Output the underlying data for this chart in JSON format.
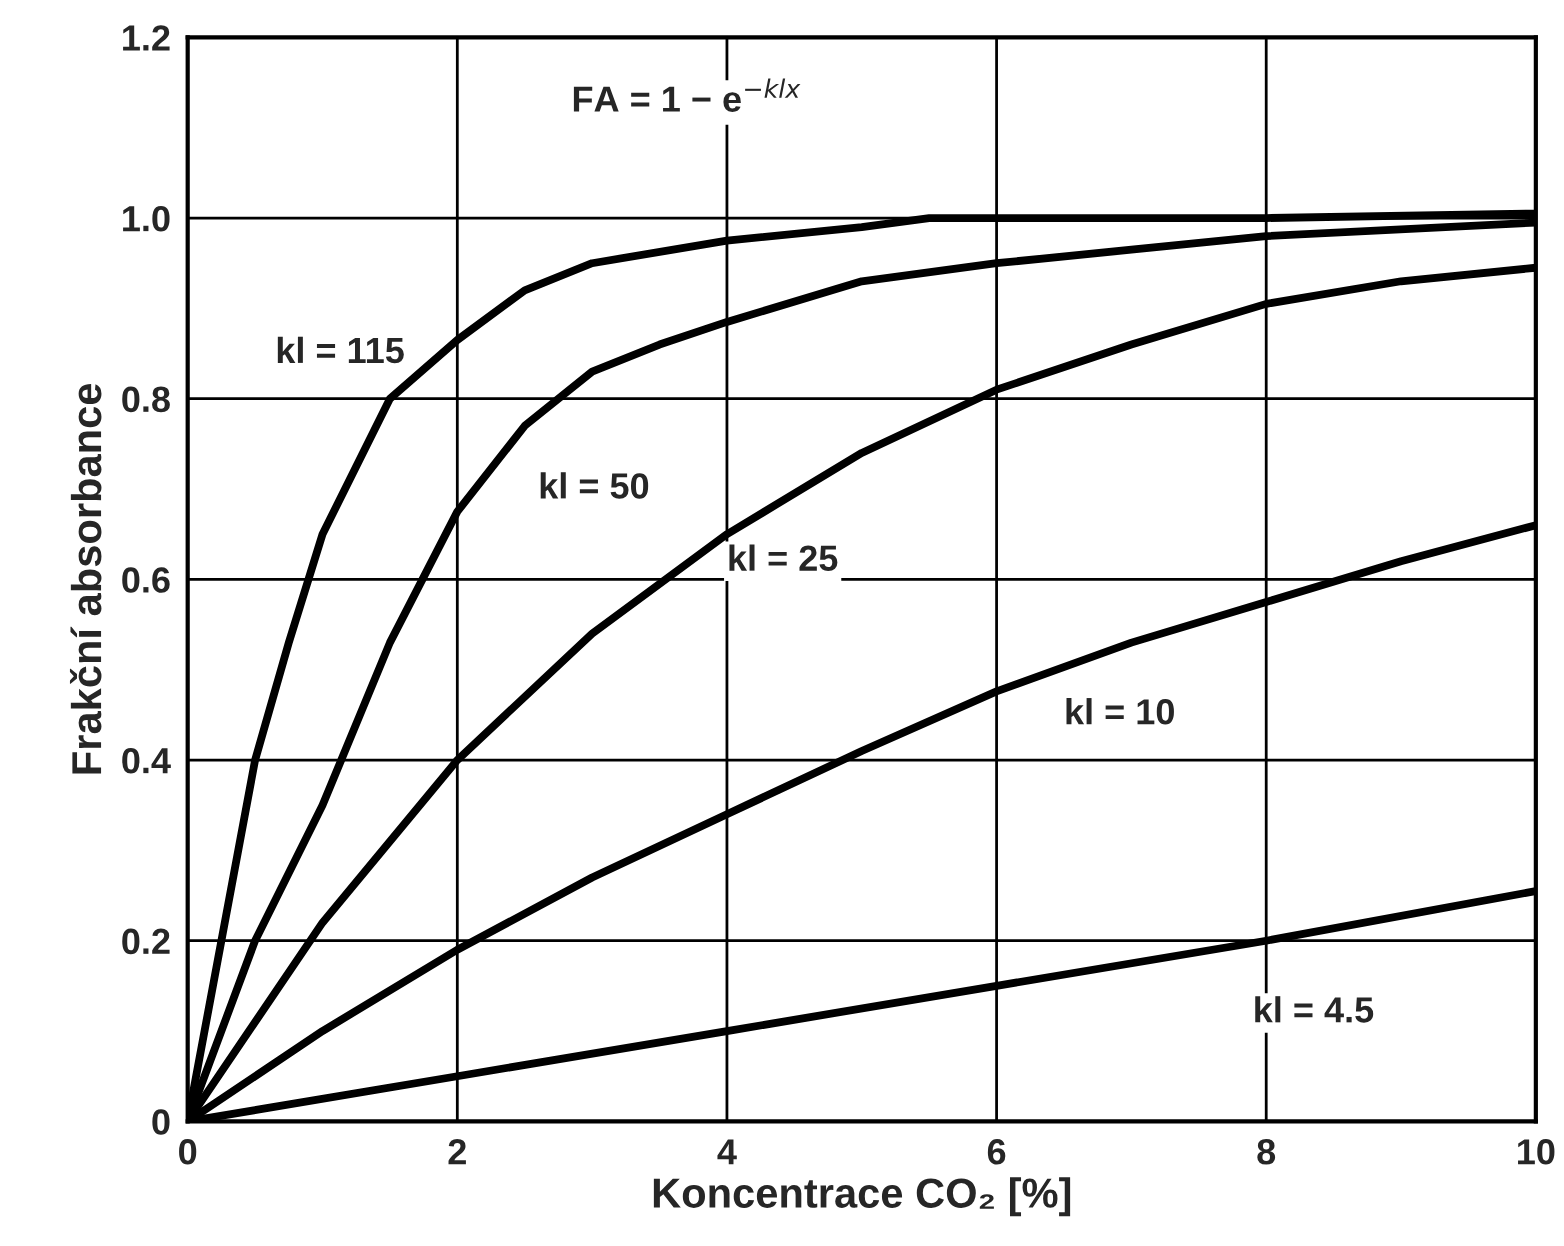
{
  "chart_data": {
    "type": "line",
    "xlabel": "Koncentrace CO₂ [%]",
    "ylabel": "Frakční absorbance",
    "xlim": [
      0,
      10
    ],
    "xticks": [
      0,
      2,
      4,
      6,
      8,
      10
    ],
    "ylim": [
      0,
      1.2
    ],
    "yticks": [
      0,
      0.2,
      0.4,
      0.6,
      0.8,
      {
        "value": 1.0,
        "label": "1.0"
      },
      1.2
    ],
    "grid": true,
    "marker": "none",
    "line_style": "solid",
    "series": [
      {
        "name": "kl = 4.5",
        "color": "#000000",
        "x": [
          0,
          2,
          4,
          6,
          8,
          10
        ],
        "values": [
          0,
          0.05,
          0.1,
          0.15,
          0.2,
          0.255
        ]
      },
      {
        "name": "kl = 10",
        "color": "#000000",
        "x": [
          0,
          1,
          2,
          3,
          4,
          5,
          6,
          7,
          8,
          9,
          10
        ],
        "values": [
          0,
          0.1,
          0.19,
          0.27,
          0.34,
          0.41,
          0.476,
          0.53,
          0.575,
          0.62,
          0.66
        ]
      },
      {
        "name": "kl = 25",
        "color": "#000000",
        "x": [
          0,
          1,
          2,
          3,
          4,
          5,
          6,
          7,
          8,
          9,
          10
        ],
        "values": [
          0,
          0.22,
          0.4,
          0.54,
          0.65,
          0.74,
          0.81,
          0.86,
          0.905,
          0.93,
          0.945
        ]
      },
      {
        "name": "kl = 50",
        "color": "#000000",
        "x": [
          0,
          0.5,
          1,
          1.5,
          2,
          2.5,
          3,
          3.5,
          4,
          5,
          6,
          7,
          8,
          10
        ],
        "values": [
          0,
          0.2,
          0.35,
          0.53,
          0.675,
          0.77,
          0.83,
          0.86,
          0.885,
          0.93,
          0.95,
          0.965,
          0.98,
          0.995
        ]
      },
      {
        "name": "kl = 115",
        "color": "#000000",
        "x": [
          0,
          0.25,
          0.5,
          0.75,
          1,
          1.5,
          2,
          2.5,
          3,
          4,
          5,
          5.5,
          6,
          8,
          10
        ],
        "values": [
          0,
          0.2,
          0.4,
          0.53,
          0.65,
          0.8,
          0.865,
          0.92,
          0.95,
          0.975,
          0.99,
          1.0,
          1.0,
          1.0,
          1.005
        ]
      }
    ],
    "annotations": [
      "FA = 1 − e$^{−klx}$"
    ]
  }
}
